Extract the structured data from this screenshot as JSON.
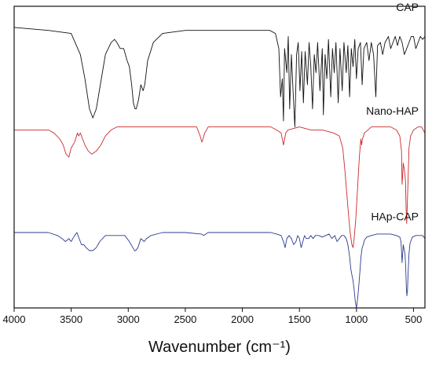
{
  "chart_data": {
    "type": "line",
    "title": "",
    "xlabel": "Wavenumber (cm⁻¹)",
    "ylabel": "",
    "xlim": [
      4000,
      400
    ],
    "x_reversed": true,
    "y_axis_visible": false,
    "grid": false,
    "x_ticks": [
      4000,
      3500,
      3000,
      2500,
      2000,
      1500,
      1000,
      500
    ],
    "x_tick_labels": [
      "4000",
      "3500",
      "3000",
      "2500",
      "2000",
      "1500",
      "1000",
      "500"
    ],
    "series": [
      {
        "name": "CAP",
        "color": "#111111",
        "baseline": 0.92,
        "points": [
          [
            4000,
            0.93
          ],
          [
            3850,
            0.925
          ],
          [
            3700,
            0.92
          ],
          [
            3500,
            0.91
          ],
          [
            3420,
            0.84
          ],
          [
            3380,
            0.76
          ],
          [
            3340,
            0.66
          ],
          [
            3310,
            0.63
          ],
          [
            3280,
            0.66
          ],
          [
            3240,
            0.75
          ],
          [
            3200,
            0.84
          ],
          [
            3150,
            0.88
          ],
          [
            3120,
            0.89
          ],
          [
            3100,
            0.88
          ],
          [
            3070,
            0.86
          ],
          [
            3040,
            0.86
          ],
          [
            3010,
            0.82
          ],
          [
            2990,
            0.8
          ],
          [
            2970,
            0.74
          ],
          [
            2955,
            0.68
          ],
          [
            2940,
            0.66
          ],
          [
            2930,
            0.66
          ],
          [
            2910,
            0.69
          ],
          [
            2890,
            0.74
          ],
          [
            2870,
            0.72
          ],
          [
            2855,
            0.74
          ],
          [
            2830,
            0.82
          ],
          [
            2780,
            0.88
          ],
          [
            2700,
            0.91
          ],
          [
            2500,
            0.92
          ],
          [
            2300,
            0.92
          ],
          [
            2100,
            0.92
          ],
          [
            1900,
            0.92
          ],
          [
            1760,
            0.92
          ],
          [
            1710,
            0.91
          ],
          [
            1680,
            0.86
          ],
          [
            1665,
            0.7
          ],
          [
            1650,
            0.76
          ],
          [
            1640,
            0.62
          ],
          [
            1630,
            0.86
          ],
          [
            1610,
            0.78
          ],
          [
            1598,
            0.9
          ],
          [
            1585,
            0.66
          ],
          [
            1570,
            0.84
          ],
          [
            1556,
            0.72
          ],
          [
            1540,
            0.6
          ],
          [
            1525,
            0.84
          ],
          [
            1510,
            0.88
          ],
          [
            1495,
            0.72
          ],
          [
            1480,
            0.85
          ],
          [
            1465,
            0.68
          ],
          [
            1450,
            0.85
          ],
          [
            1430,
            0.74
          ],
          [
            1415,
            0.88
          ],
          [
            1400,
            0.8
          ],
          [
            1385,
            0.66
          ],
          [
            1370,
            0.84
          ],
          [
            1355,
            0.78
          ],
          [
            1340,
            0.88
          ],
          [
            1320,
            0.72
          ],
          [
            1300,
            0.86
          ],
          [
            1290,
            0.64
          ],
          [
            1275,
            0.84
          ],
          [
            1260,
            0.76
          ],
          [
            1245,
            0.89
          ],
          [
            1225,
            0.7
          ],
          [
            1210,
            0.86
          ],
          [
            1195,
            0.78
          ],
          [
            1180,
            0.88
          ],
          [
            1160,
            0.68
          ],
          [
            1145,
            0.86
          ],
          [
            1125,
            0.72
          ],
          [
            1110,
            0.88
          ],
          [
            1090,
            0.78
          ],
          [
            1075,
            0.87
          ],
          [
            1060,
            0.7
          ],
          [
            1045,
            0.86
          ],
          [
            1030,
            0.8
          ],
          [
            1015,
            0.89
          ],
          [
            1000,
            0.76
          ],
          [
            985,
            0.86
          ],
          [
            965,
            0.88
          ],
          [
            950,
            0.74
          ],
          [
            935,
            0.86
          ],
          [
            910,
            0.88
          ],
          [
            890,
            0.82
          ],
          [
            870,
            0.88
          ],
          [
            850,
            0.84
          ],
          [
            830,
            0.7
          ],
          [
            815,
            0.87
          ],
          [
            790,
            0.88
          ],
          [
            770,
            0.84
          ],
          [
            750,
            0.88
          ],
          [
            720,
            0.9
          ],
          [
            700,
            0.86
          ],
          [
            680,
            0.88
          ],
          [
            660,
            0.9
          ],
          [
            640,
            0.87
          ],
          [
            620,
            0.9
          ],
          [
            600,
            0.88
          ],
          [
            580,
            0.84
          ],
          [
            560,
            0.86
          ],
          [
            540,
            0.88
          ],
          [
            520,
            0.9
          ],
          [
            500,
            0.9
          ],
          [
            480,
            0.86
          ],
          [
            460,
            0.88
          ],
          [
            440,
            0.9
          ],
          [
            420,
            0.89
          ],
          [
            400,
            0.9
          ]
        ]
      },
      {
        "name": "Nano-HAP",
        "color": "#cc2a2a",
        "baseline": 0.6,
        "points": [
          [
            4000,
            0.59
          ],
          [
            3900,
            0.59
          ],
          [
            3800,
            0.59
          ],
          [
            3700,
            0.59
          ],
          [
            3650,
            0.58
          ],
          [
            3600,
            0.56
          ],
          [
            3570,
            0.54
          ],
          [
            3545,
            0.51
          ],
          [
            3520,
            0.5
          ],
          [
            3500,
            0.53
          ],
          [
            3470,
            0.55
          ],
          [
            3445,
            0.58
          ],
          [
            3435,
            0.57
          ],
          [
            3420,
            0.58
          ],
          [
            3400,
            0.56
          ],
          [
            3380,
            0.54
          ],
          [
            3350,
            0.52
          ],
          [
            3320,
            0.51
          ],
          [
            3280,
            0.52
          ],
          [
            3240,
            0.54
          ],
          [
            3200,
            0.57
          ],
          [
            3150,
            0.59
          ],
          [
            3100,
            0.6
          ],
          [
            3050,
            0.6
          ],
          [
            2900,
            0.6
          ],
          [
            2700,
            0.6
          ],
          [
            2500,
            0.6
          ],
          [
            2400,
            0.6
          ],
          [
            2370,
            0.57
          ],
          [
            2355,
            0.55
          ],
          [
            2345,
            0.56
          ],
          [
            2330,
            0.58
          ],
          [
            2300,
            0.6
          ],
          [
            2100,
            0.6
          ],
          [
            1900,
            0.6
          ],
          [
            1750,
            0.6
          ],
          [
            1700,
            0.59
          ],
          [
            1660,
            0.58
          ],
          [
            1650,
            0.56
          ],
          [
            1640,
            0.54
          ],
          [
            1630,
            0.56
          ],
          [
            1620,
            0.58
          ],
          [
            1600,
            0.59
          ],
          [
            1500,
            0.6
          ],
          [
            1400,
            0.59
          ],
          [
            1300,
            0.59
          ],
          [
            1200,
            0.58
          ],
          [
            1150,
            0.57
          ],
          [
            1120,
            0.53
          ],
          [
            1100,
            0.45
          ],
          [
            1085,
            0.38
          ],
          [
            1070,
            0.31
          ],
          [
            1055,
            0.25
          ],
          [
            1040,
            0.21
          ],
          [
            1030,
            0.2
          ],
          [
            1020,
            0.23
          ],
          [
            1005,
            0.3
          ],
          [
            990,
            0.4
          ],
          [
            975,
            0.5
          ],
          [
            962,
            0.56
          ],
          [
            955,
            0.54
          ],
          [
            948,
            0.56
          ],
          [
            930,
            0.58
          ],
          [
            900,
            0.59
          ],
          [
            870,
            0.6
          ],
          [
            800,
            0.6
          ],
          [
            700,
            0.6
          ],
          [
            650,
            0.59
          ],
          [
            620,
            0.57
          ],
          [
            605,
            0.52
          ],
          [
            600,
            0.41
          ],
          [
            595,
            0.44
          ],
          [
            590,
            0.48
          ],
          [
            580,
            0.46
          ],
          [
            570,
            0.42
          ],
          [
            565,
            0.33
          ],
          [
            560,
            0.28
          ],
          [
            555,
            0.34
          ],
          [
            548,
            0.42
          ],
          [
            540,
            0.53
          ],
          [
            525,
            0.57
          ],
          [
            500,
            0.59
          ],
          [
            460,
            0.6
          ],
          [
            430,
            0.6
          ],
          [
            400,
            0.58
          ]
        ]
      },
      {
        "name": "HAp-CAP",
        "color": "#2c3a8f",
        "baseline": 0.25,
        "points": [
          [
            4000,
            0.25
          ],
          [
            3900,
            0.25
          ],
          [
            3800,
            0.25
          ],
          [
            3700,
            0.25
          ],
          [
            3620,
            0.24
          ],
          [
            3580,
            0.23
          ],
          [
            3550,
            0.22
          ],
          [
            3520,
            0.23
          ],
          [
            3500,
            0.22
          ],
          [
            3470,
            0.24
          ],
          [
            3450,
            0.25
          ],
          [
            3430,
            0.23
          ],
          [
            3410,
            0.21
          ],
          [
            3390,
            0.21
          ],
          [
            3370,
            0.2
          ],
          [
            3340,
            0.19
          ],
          [
            3310,
            0.19
          ],
          [
            3280,
            0.2
          ],
          [
            3250,
            0.22
          ],
          [
            3200,
            0.24
          ],
          [
            3150,
            0.24
          ],
          [
            3080,
            0.24
          ],
          [
            3030,
            0.24
          ],
          [
            2990,
            0.22
          ],
          [
            2960,
            0.2
          ],
          [
            2945,
            0.19
          ],
          [
            2935,
            0.19
          ],
          [
            2915,
            0.2
          ],
          [
            2890,
            0.23
          ],
          [
            2860,
            0.22
          ],
          [
            2840,
            0.23
          ],
          [
            2800,
            0.24
          ],
          [
            2700,
            0.25
          ],
          [
            2500,
            0.25
          ],
          [
            2360,
            0.245
          ],
          [
            2340,
            0.24
          ],
          [
            2300,
            0.25
          ],
          [
            2100,
            0.25
          ],
          [
            1900,
            0.25
          ],
          [
            1750,
            0.25
          ],
          [
            1700,
            0.245
          ],
          [
            1660,
            0.24
          ],
          [
            1640,
            0.22
          ],
          [
            1625,
            0.2
          ],
          [
            1610,
            0.23
          ],
          [
            1590,
            0.24
          ],
          [
            1570,
            0.23
          ],
          [
            1550,
            0.21
          ],
          [
            1530,
            0.22
          ],
          [
            1515,
            0.24
          ],
          [
            1500,
            0.23
          ],
          [
            1485,
            0.2
          ],
          [
            1470,
            0.22
          ],
          [
            1455,
            0.24
          ],
          [
            1440,
            0.23
          ],
          [
            1420,
            0.23
          ],
          [
            1400,
            0.24
          ],
          [
            1380,
            0.23
          ],
          [
            1360,
            0.24
          ],
          [
            1330,
            0.24
          ],
          [
            1300,
            0.235
          ],
          [
            1270,
            0.24
          ],
          [
            1240,
            0.245
          ],
          [
            1215,
            0.23
          ],
          [
            1190,
            0.24
          ],
          [
            1170,
            0.22
          ],
          [
            1150,
            0.23
          ],
          [
            1130,
            0.24
          ],
          [
            1110,
            0.24
          ],
          [
            1090,
            0.23
          ],
          [
            1075,
            0.21
          ],
          [
            1060,
            0.17
          ],
          [
            1050,
            0.13
          ],
          [
            1040,
            0.11
          ],
          [
            1030,
            0.09
          ],
          [
            1020,
            0.06
          ],
          [
            1010,
            0.02
          ],
          [
            1000,
            0.0
          ],
          [
            990,
            0.03
          ],
          [
            980,
            0.07
          ],
          [
            970,
            0.12
          ],
          [
            960,
            0.17
          ],
          [
            950,
            0.2
          ],
          [
            940,
            0.21
          ],
          [
            930,
            0.225
          ],
          [
            910,
            0.235
          ],
          [
            870,
            0.24
          ],
          [
            820,
            0.245
          ],
          [
            760,
            0.245
          ],
          [
            700,
            0.245
          ],
          [
            650,
            0.24
          ],
          [
            620,
            0.235
          ],
          [
            610,
            0.22
          ],
          [
            605,
            0.19
          ],
          [
            600,
            0.15
          ],
          [
            595,
            0.18
          ],
          [
            590,
            0.21
          ],
          [
            585,
            0.2
          ],
          [
            575,
            0.18
          ],
          [
            568,
            0.13
          ],
          [
            563,
            0.07
          ],
          [
            558,
            0.04
          ],
          [
            553,
            0.06
          ],
          [
            548,
            0.11
          ],
          [
            540,
            0.18
          ],
          [
            530,
            0.215
          ],
          [
            510,
            0.235
          ],
          [
            480,
            0.24
          ],
          [
            450,
            0.24
          ],
          [
            420,
            0.24
          ],
          [
            400,
            0.23
          ]
        ]
      }
    ]
  }
}
